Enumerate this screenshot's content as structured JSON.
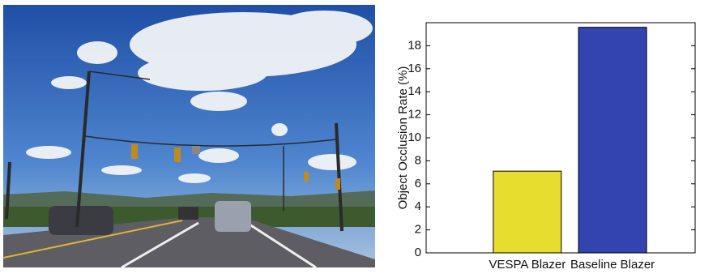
{
  "chart_data": {
    "type": "bar",
    "ylabel": "Object Occlusion Rate (%)",
    "categories": [
      "VESPA Blazer",
      "Baseline Blazer"
    ],
    "values": [
      7.1,
      19.6
    ],
    "colors": [
      "#e6dd2e",
      "#3343b0"
    ],
    "ylim": [
      0,
      20
    ],
    "yticks": [
      0,
      2,
      4,
      6,
      8,
      10,
      12,
      14,
      16,
      18
    ],
    "grid": false
  }
}
